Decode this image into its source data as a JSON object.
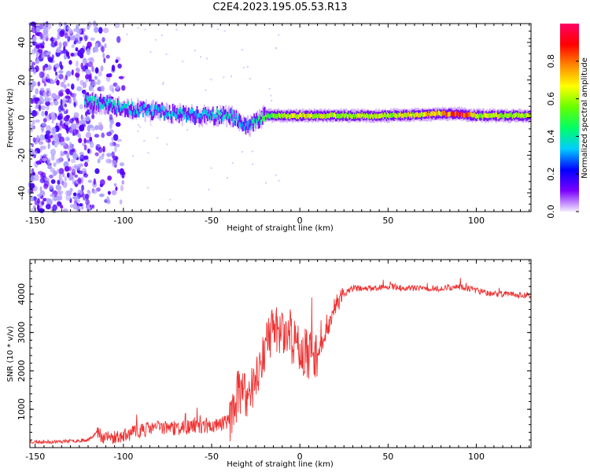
{
  "figure": {
    "title": "C2E4.2023.195.05.53.R13"
  },
  "chart_data": [
    {
      "type": "heatmap",
      "xlabel": "Height of straight line (km)",
      "ylabel": "Frequency (Hz)",
      "xlim": [
        -153,
        131
      ],
      "ylim": [
        -50,
        50
      ],
      "xticks": [
        -150,
        -100,
        -50,
        0,
        50,
        100
      ],
      "yticks": [
        -40,
        -20,
        0,
        20,
        40
      ],
      "colorbar": {
        "label": "Normalized spectral amplitude",
        "range": [
          0,
          1
        ],
        "ticks": [
          0.0,
          0.2,
          0.4,
          0.6,
          0.8
        ],
        "tick_labels": [
          "0.0",
          "0.2",
          "0.4",
          "0.6",
          "0.8"
        ],
        "colormap": [
          "#ffffff",
          "#7a00ff",
          "#0000ff",
          "#00ccff",
          "#00ff66",
          "#66ff00",
          "#ffff00",
          "#ff8800",
          "#ff0000",
          "#ff0066"
        ]
      },
      "features": [
        {
          "name": "noise_region",
          "x_range": [
            -153,
            -100
          ],
          "freq_range": [
            -50,
            50
          ],
          "amplitude": 0.15
        },
        {
          "name": "echo_trace",
          "x": [
            -120,
            -100,
            -80,
            -60,
            -40,
            -30,
            -20,
            0,
            20,
            50,
            80,
            90,
            100,
            131
          ],
          "freq": [
            9,
            5,
            3,
            1,
            1,
            -5,
            1,
            1,
            1,
            1,
            2,
            2,
            1,
            1
          ],
          "amplitude": [
            0.4,
            0.35,
            0.35,
            0.35,
            0.35,
            0.3,
            0.5,
            0.65,
            0.6,
            0.6,
            0.7,
            0.9,
            0.6,
            0.6
          ]
        }
      ]
    },
    {
      "type": "line",
      "xlabel": "Height of straight line (km)",
      "ylabel": "SNR (10 * v/v)",
      "xlim": [
        -153,
        131
      ],
      "ylim": [
        0,
        4900
      ],
      "xticks": [
        -150,
        -100,
        -50,
        0,
        50,
        100
      ],
      "yticks": [
        1000,
        2000,
        3000,
        4000
      ],
      "series": [
        {
          "color": "#ee3333",
          "x": [
            -153,
            -140,
            -130,
            -120,
            -115,
            -110,
            -100,
            -90,
            -80,
            -70,
            -60,
            -50,
            -40,
            -35,
            -30,
            -25,
            -20,
            -15,
            -10,
            -5,
            0,
            5,
            10,
            15,
            20,
            25,
            30,
            40,
            50,
            60,
            70,
            80,
            90,
            95,
            100,
            110,
            120,
            131
          ],
          "y": [
            150,
            150,
            170,
            200,
            400,
            250,
            300,
            450,
            550,
            500,
            550,
            550,
            700,
            1400,
            1300,
            1800,
            2600,
            3100,
            3100,
            2800,
            2600,
            2400,
            2500,
            3000,
            3700,
            4000,
            4150,
            4150,
            4200,
            4150,
            4150,
            4150,
            4200,
            4150,
            4100,
            4000,
            4000,
            3950
          ]
        }
      ]
    }
  ]
}
